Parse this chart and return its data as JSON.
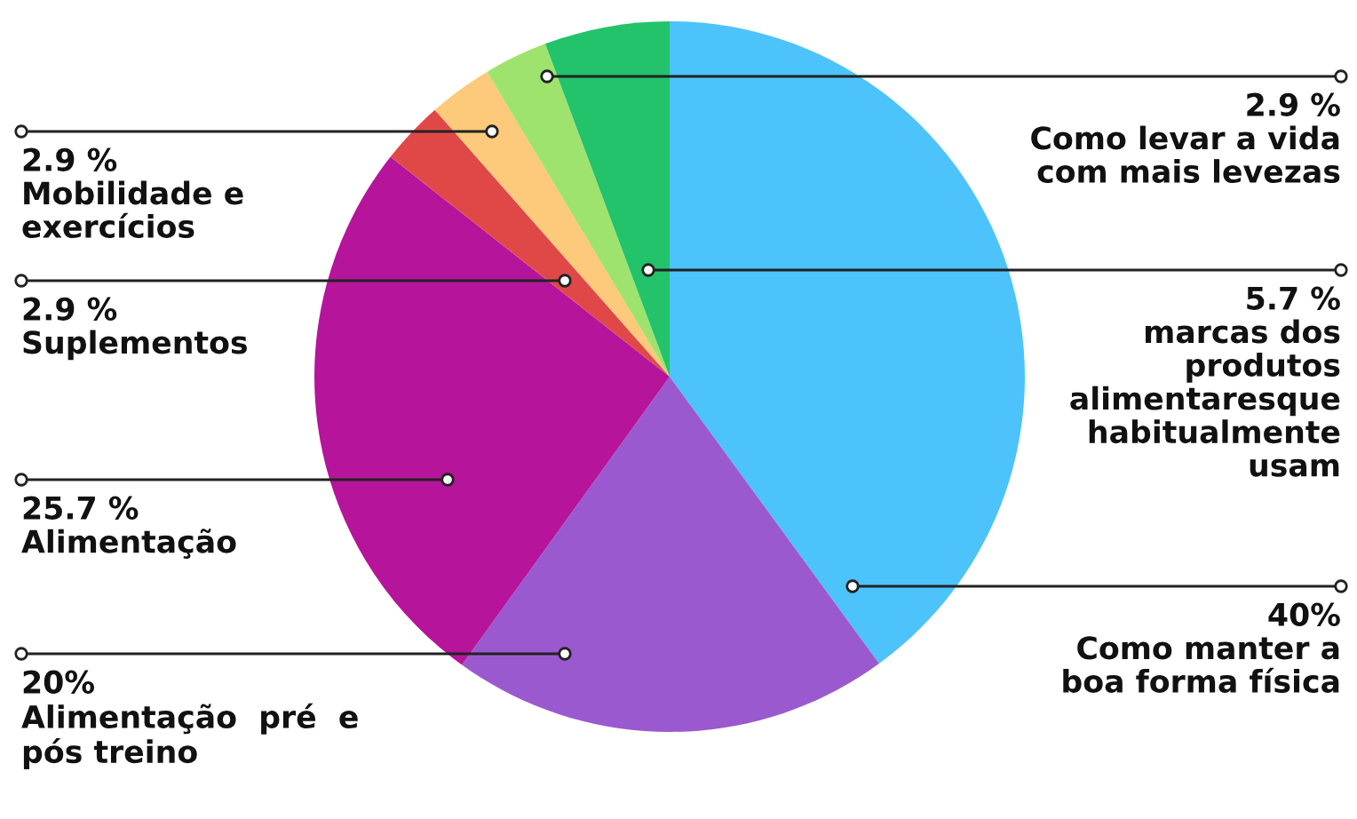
{
  "chart_data": {
    "type": "pie",
    "categories": [
      "Como manter a\nboa forma física",
      "Alimentação  pré  e\npós treino",
      "Alimentação",
      "Suplementos",
      "Mobilidade e\nexercícios",
      "Como levar a vida\ncom mais levezas",
      "marcas dos\nprodutos\nalimentaresque\nhabitualmente\nusam"
    ],
    "values": [
      40,
      20,
      25.7,
      2.9,
      2.9,
      2.9,
      5.7
    ],
    "value_labels": [
      "40%",
      "20%",
      "25.7 %",
      "2.9 %",
      "2.9 %",
      "2.9 %",
      "5.7 %"
    ],
    "colors": [
      "#4cc3fb",
      "#9b59cf",
      "#b5149b",
      "#e04848",
      "#fdc97a",
      "#9ee36e",
      "#22c36a"
    ],
    "legend": false
  }
}
